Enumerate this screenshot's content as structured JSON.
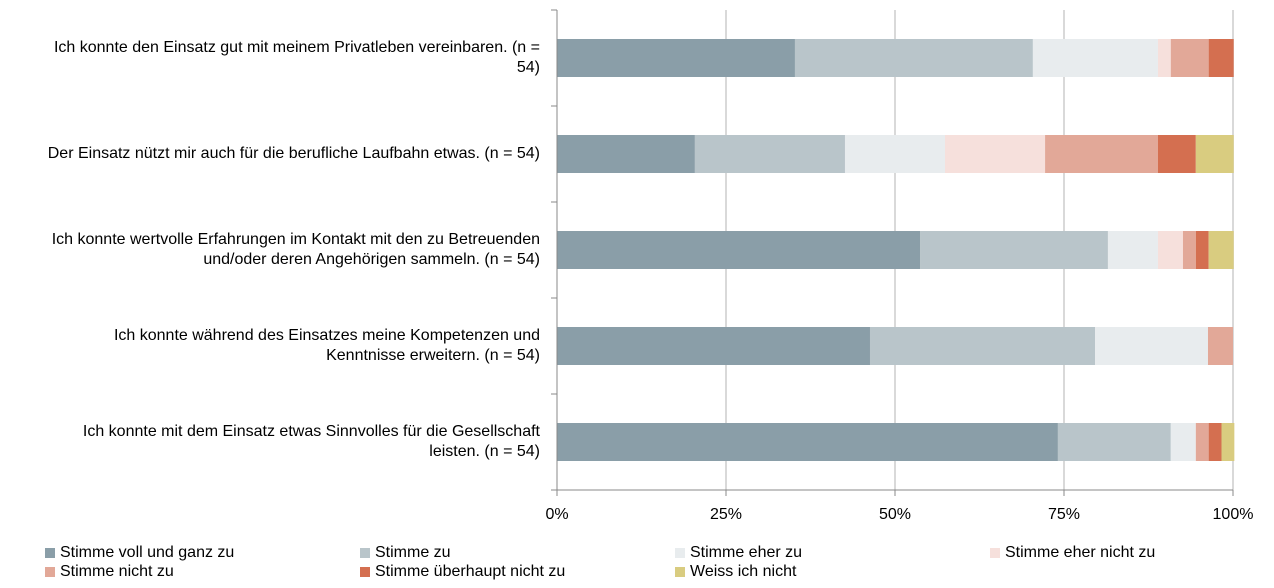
{
  "chart_data": {
    "type": "stacked-bar-horizontal",
    "categories": [
      "Ich konnte den Einsatz gut mit meinem Privatleben vereinbaren. (n = 54)",
      "Der Einsatz nützt mir auch für die berufliche Laufbahn etwas. (n = 54)",
      "Ich konnte wertvolle Erfahrungen im Kontakt mit den zu Betreuenden und/oder deren Angehörigen sammeln. (n = 54)",
      "Ich konnte während des Einsatzes meine Kompetenzen und Kenntnisse erweitern. (n = 54)",
      "Ich konnte mit dem Einsatz etwas Sinnvolles für die Gesellschaft leisten. (n = 54)"
    ],
    "series": [
      {
        "name": "Stimme voll und ganz zu",
        "color": "#8a9ea8",
        "values": [
          35.2,
          20.4,
          53.7,
          46.3,
          74.1
        ]
      },
      {
        "name": "Stimme zu",
        "color": "#b9c5ca",
        "values": [
          35.2,
          22.2,
          27.8,
          33.3,
          16.7
        ]
      },
      {
        "name": "Stimme eher zu",
        "color": "#e8ecee",
        "values": [
          18.5,
          14.8,
          7.4,
          16.7,
          3.7
        ]
      },
      {
        "name": "Stimme eher nicht zu",
        "color": "#f6e0dc",
        "values": [
          1.9,
          14.8,
          3.7,
          0,
          0
        ]
      },
      {
        "name": "Stimme nicht zu",
        "color": "#e2a898",
        "values": [
          5.6,
          16.7,
          1.9,
          3.7,
          1.9
        ]
      },
      {
        "name": "Stimme überhaupt nicht zu",
        "color": "#d46f50",
        "values": [
          3.7,
          5.6,
          1.9,
          0,
          1.9
        ]
      },
      {
        "name": "Weiss ich nicht",
        "color": "#d9cc80",
        "values": [
          0,
          5.6,
          3.7,
          0,
          1.9
        ]
      }
    ],
    "xlim": [
      0,
      100
    ],
    "xticks": [
      {
        "value": 0,
        "label": "0%"
      },
      {
        "value": 25,
        "label": "25%"
      },
      {
        "value": 50,
        "label": "50%"
      },
      {
        "value": 75,
        "label": "75%"
      },
      {
        "value": 100,
        "label": "100%"
      }
    ],
    "grid": true
  }
}
